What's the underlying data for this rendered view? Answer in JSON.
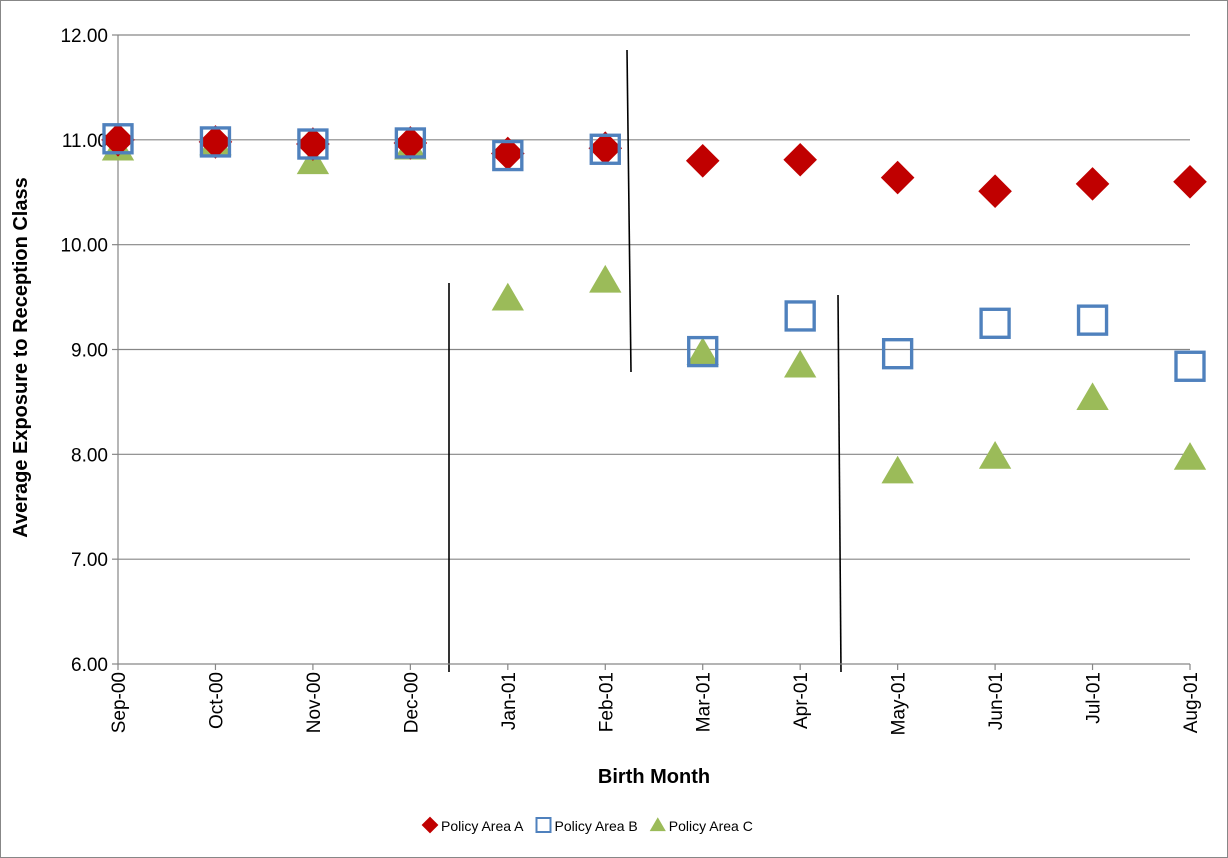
{
  "chart_data": {
    "type": "scatter",
    "title": "",
    "xlabel": "Birth Month",
    "ylabel": "Average Exposure to Reception Class",
    "x": [
      "Sep-00",
      "Oct-00",
      "Nov-00",
      "Dec-00",
      "Jan-01",
      "Feb-01",
      "Mar-01",
      "Apr-01",
      "May-01",
      "Jun-01",
      "Jul-01",
      "Aug-01"
    ],
    "ylim": [
      6,
      12
    ],
    "yticks": [
      "6.00",
      "7.00",
      "8.00",
      "9.00",
      "10.00",
      "11.00",
      "12.00"
    ],
    "grid": "horizontal",
    "legend_position": "bottom",
    "series": [
      {
        "name": "Policy Area A",
        "marker": "diamond",
        "color": "#C00000",
        "values": [
          11.0,
          10.98,
          10.96,
          10.97,
          10.87,
          10.92,
          10.8,
          10.81,
          10.64,
          10.51,
          10.58,
          10.6
        ]
      },
      {
        "name": "Policy Area B",
        "marker": "square-open",
        "color": "#4F81BD",
        "values": [
          11.01,
          10.98,
          10.96,
          10.97,
          10.85,
          10.91,
          8.98,
          9.32,
          8.96,
          9.25,
          9.28,
          8.84
        ]
      },
      {
        "name": "Policy Area C",
        "marker": "triangle",
        "color": "#9BBB59",
        "values": [
          10.92,
          10.97,
          10.79,
          10.93,
          9.49,
          9.66,
          8.97,
          8.85,
          7.84,
          7.98,
          8.54,
          7.97
        ]
      }
    ]
  }
}
